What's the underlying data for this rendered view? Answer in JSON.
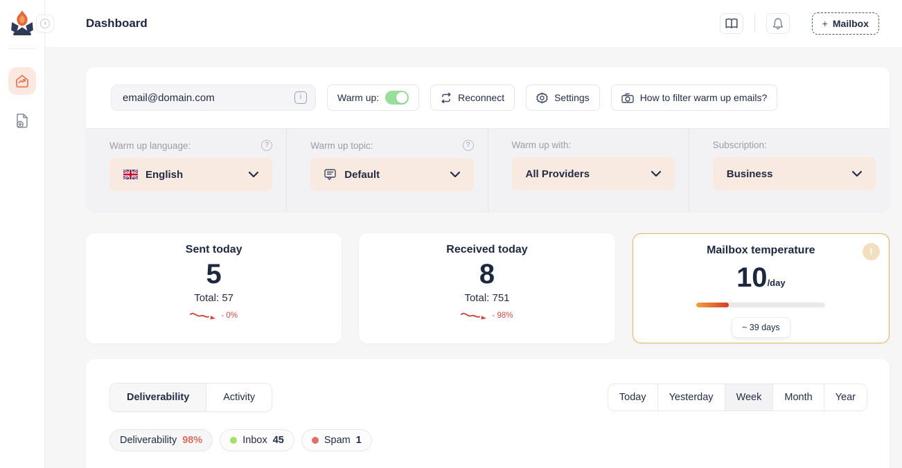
{
  "icons": {
    "info": "i",
    "help": "?",
    "alert": "!",
    "chevron": "›"
  },
  "header": {
    "title": "Dashboard",
    "mailbox_plus": "+",
    "mailbox_label": "Mailbox"
  },
  "toolbar": {
    "email": "email@domain.com",
    "warmup_label": "Warm up:",
    "warmup_state": "on",
    "reconnect_label": "Reconnect",
    "settings_label": "Settings",
    "howto_label": "How to filter warm up emails?"
  },
  "filters": [
    {
      "label": "Warm up language:",
      "value": "English"
    },
    {
      "label": "Warm up topic:",
      "value": "Default"
    },
    {
      "label": "Warm up with:",
      "value": "All Providers"
    },
    {
      "label": "Subscription:",
      "value": "Business"
    }
  ],
  "stats": [
    {
      "title": "Sent today",
      "value": "5",
      "total": "Total: 57",
      "trend": "- 0%"
    },
    {
      "title": "Received today",
      "value": "8",
      "total": "Total: 751",
      "trend": "- 98%"
    }
  ],
  "temperature": {
    "title": "Mailbox temperature",
    "value": "10",
    "unit": "/day",
    "progress_pct": 25,
    "eta": "~ 39 days"
  },
  "panel": {
    "tabs": [
      "Deliverability",
      "Activity"
    ],
    "active_tab": "Deliverability",
    "ranges": [
      "Today",
      "Yesterday",
      "Week",
      "Month",
      "Year"
    ],
    "active_range": "Week",
    "legend": [
      {
        "label": "Deliverability",
        "value": "98%"
      },
      {
        "label": "Inbox",
        "value": "45"
      },
      {
        "label": "Spam",
        "value": "1"
      }
    ]
  },
  "colors": {
    "accent": "#E8734E",
    "navy": "#232C44",
    "trend_red": "#CF4A44",
    "toggle_green": "#98DF9A",
    "temp_border": "#E9B35C",
    "inbox_dot": "#A6DE6B",
    "spam_dot": "#DF7068"
  }
}
